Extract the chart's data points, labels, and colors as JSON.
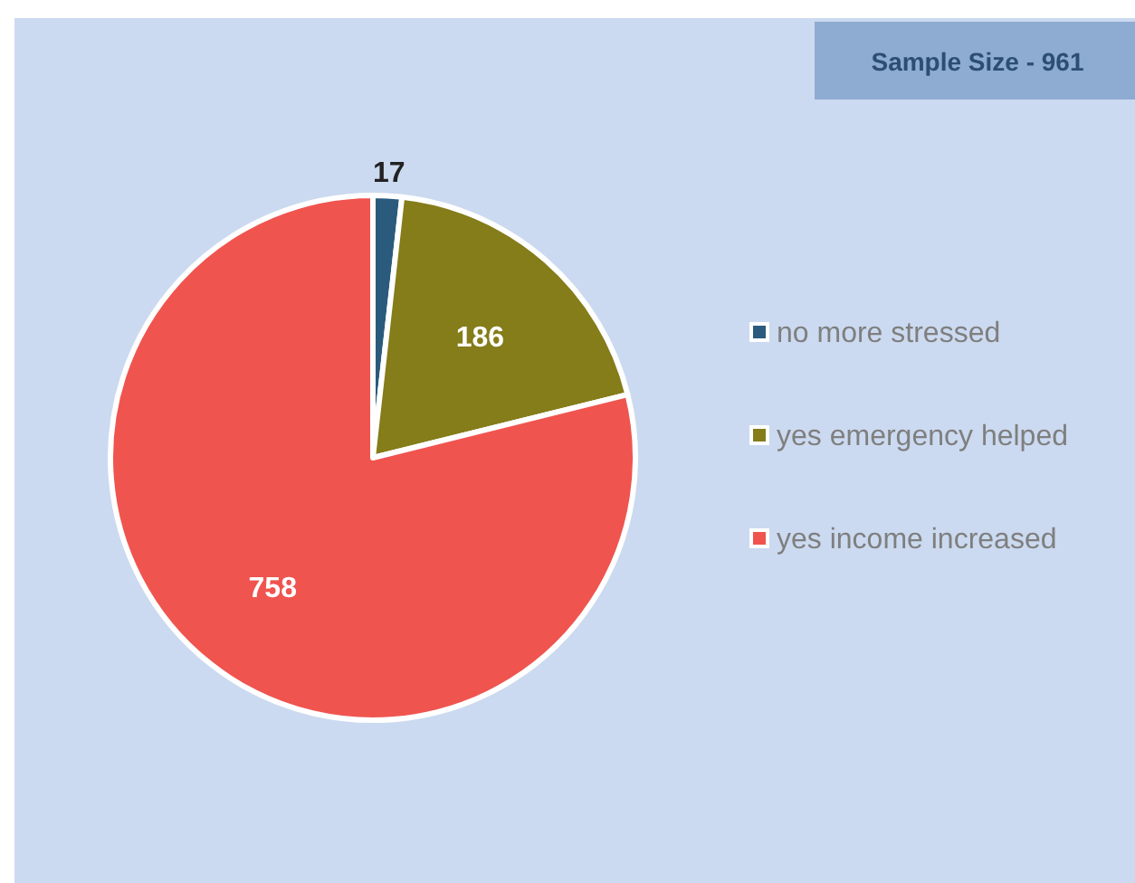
{
  "chart_data": {
    "type": "pie",
    "categories": [
      "no more stressed",
      "yes emergency helped",
      "yes income increased"
    ],
    "values": [
      17,
      186,
      758
    ],
    "colors": [
      "#2a5b7c",
      "#857c1a",
      "#f0544f"
    ],
    "data_labels": true,
    "legend": "right",
    "annotations": [
      "Sample Size - 961"
    ]
  }
}
